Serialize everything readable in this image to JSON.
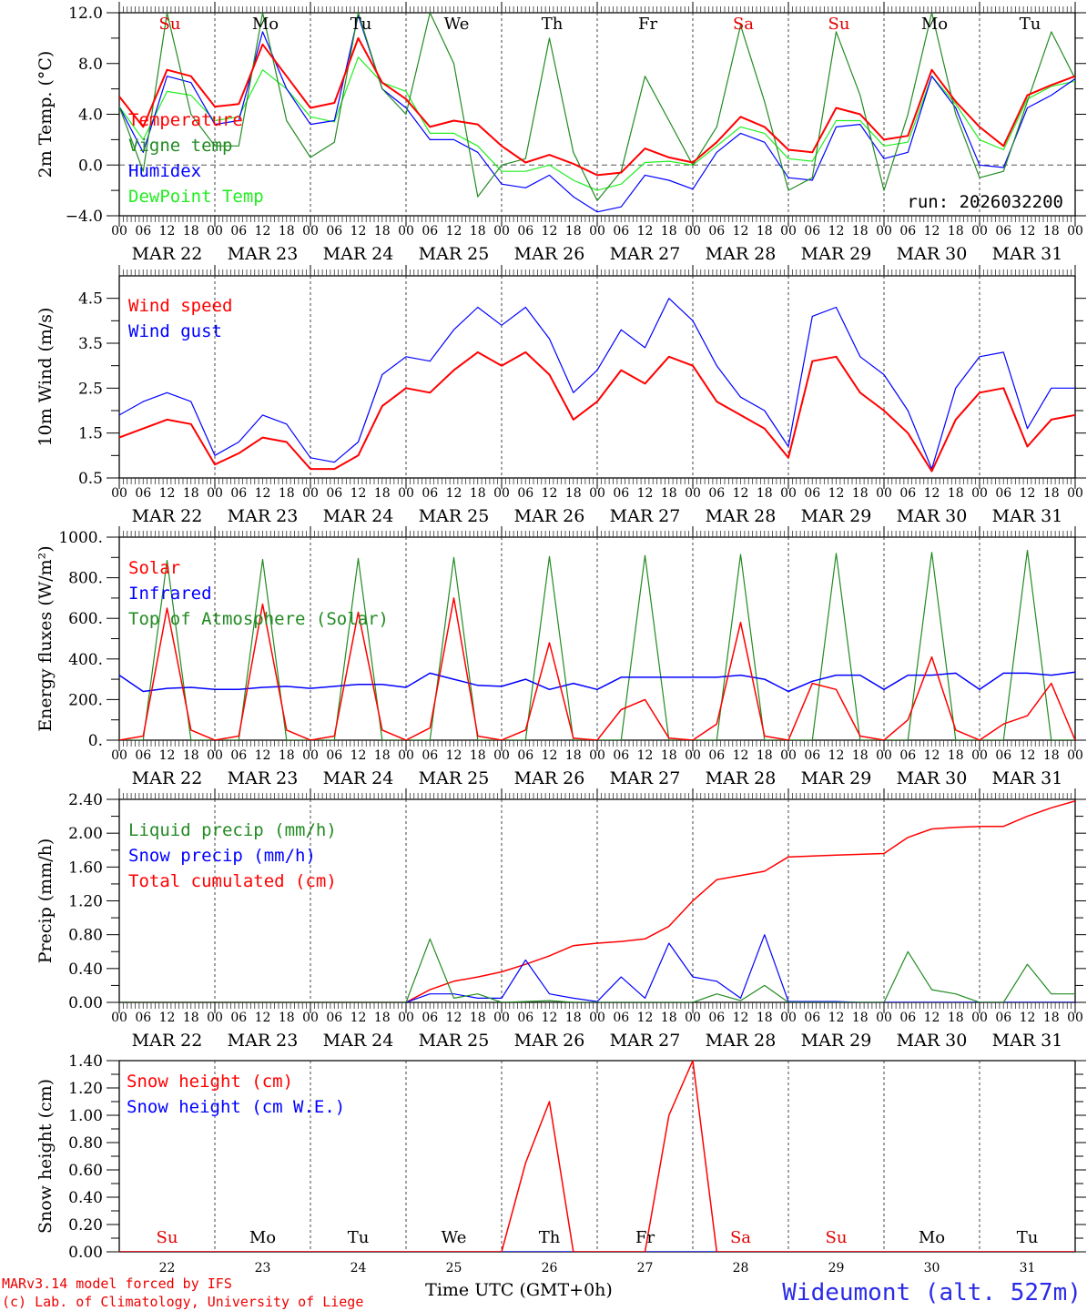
{
  "footer": {
    "model": "MARv3.14 model forced by IFS",
    "copyright": "(c) Lab. of Climatology, University of Liege",
    "station": "Wideumont (alt. 527m)",
    "xtitle": "Time UTC (GMT+0h)"
  },
  "run_label": "run: 2026032200",
  "days": [
    "MAR 22",
    "MAR 23",
    "MAR 24",
    "MAR 25",
    "MAR 26",
    "MAR 27",
    "MAR 28",
    "MAR 29",
    "MAR 30",
    "MAR 31"
  ],
  "day_numbers": [
    "22",
    "23",
    "24",
    "25",
    "26",
    "27",
    "28",
    "29",
    "30",
    "31"
  ],
  "weekdays": [
    {
      "label": "Su",
      "color": "#e00000"
    },
    {
      "label": "Mo",
      "color": "#000000"
    },
    {
      "label": "Tu",
      "color": "#000000"
    },
    {
      "label": "We",
      "color": "#000000"
    },
    {
      "label": "Th",
      "color": "#000000"
    },
    {
      "label": "Fr",
      "color": "#000000"
    },
    {
      "label": "Sa",
      "color": "#e00000"
    },
    {
      "label": "Su",
      "color": "#e00000"
    },
    {
      "label": "Mo",
      "color": "#000000"
    },
    {
      "label": "Tu",
      "color": "#000000"
    }
  ],
  "hour_ticks": [
    "00",
    "06",
    "12",
    "18"
  ],
  "chart_data": [
    {
      "type": "line",
      "title": "2m Temperature",
      "ylabel": "2m Temp. (°C)",
      "ylim": [
        -4,
        12
      ],
      "yticks": [
        "−4.0",
        "0.0",
        "4.0",
        "8.0",
        "12.0"
      ],
      "ytick_values": [
        -4,
        0,
        4,
        8,
        12
      ],
      "x_step_hours": 6,
      "zero_line": true,
      "series": [
        {
          "name": "Temperature",
          "color": "#ff0000",
          "width": 2,
          "values": [
            5.4,
            3.0,
            7.5,
            7.0,
            4.6,
            4.8,
            9.5,
            7.0,
            4.5,
            4.9,
            10.0,
            6.5,
            5.2,
            3.0,
            3.5,
            3.2,
            1.5,
            0.2,
            0.8,
            0.1,
            -0.8,
            -0.6,
            1.3,
            0.6,
            0.2,
            1.8,
            3.8,
            3.0,
            1.2,
            1.0,
            4.5,
            4.0,
            2.0,
            2.3,
            7.5,
            5.0,
            3.0,
            1.5,
            5.5,
            6.3,
            7.0
          ]
        },
        {
          "name": "Vigne temp",
          "color": "#228b22",
          "width": 1.2,
          "values": [
            4.6,
            -0.5,
            12,
            4.0,
            1.5,
            1.5,
            12,
            3.5,
            0.6,
            1.8,
            12,
            6.0,
            4.0,
            12,
            8.0,
            -2.5,
            0.0,
            0.5,
            10.0,
            1.0,
            -2.8,
            -0.5,
            7.0,
            3.5,
            0.0,
            3.0,
            11.0,
            5.0,
            -2.0,
            -1.0,
            10.5,
            5.5,
            -2.0,
            4.0,
            12,
            4.0,
            -1.0,
            -0.5,
            5.0,
            10.5,
            6.8
          ]
        },
        {
          "name": "Humidex",
          "color": "#0000ff",
          "width": 1.2,
          "values": [
            4.6,
            1.0,
            7.0,
            6.5,
            3.2,
            3.5,
            10.5,
            6.0,
            3.2,
            3.5,
            11.8,
            6.0,
            4.5,
            2.0,
            2.0,
            1.0,
            -1.5,
            -1.8,
            -0.8,
            -2.5,
            -3.7,
            -3.3,
            -0.8,
            -1.2,
            -1.9,
            1.0,
            2.5,
            1.8,
            -1.0,
            -1.2,
            3.0,
            3.2,
            0.5,
            1.0,
            7.0,
            4.5,
            0.0,
            -0.2,
            4.5,
            5.5,
            6.8
          ]
        },
        {
          "name": "DewPoint Temp",
          "color": "#22ee22",
          "width": 1.2,
          "values": [
            4.6,
            2.0,
            5.8,
            5.5,
            3.5,
            3.8,
            7.5,
            6.0,
            3.8,
            3.4,
            8.5,
            6.5,
            5.8,
            2.5,
            2.5,
            1.5,
            -0.5,
            -0.5,
            0.0,
            -1.2,
            -2.0,
            -1.5,
            0.2,
            0.3,
            0.0,
            1.5,
            3.0,
            2.5,
            0.5,
            0.3,
            3.5,
            3.5,
            1.5,
            1.8,
            7.0,
            4.8,
            2.0,
            1.2,
            5.2,
            6.2,
            6.6
          ]
        }
      ]
    },
    {
      "type": "line",
      "title": "10m Wind",
      "ylabel": "10m Wind (m/s)",
      "ylim": [
        0.5,
        5.0
      ],
      "yticks": [
        "0.5",
        "1.5",
        "2.5",
        "3.5",
        "4.5"
      ],
      "ytick_values": [
        0.5,
        1.5,
        2.5,
        3.5,
        4.5
      ],
      "x_step_hours": 6,
      "series": [
        {
          "name": "Wind speed",
          "color": "#ff0000",
          "width": 2,
          "values": [
            1.4,
            1.6,
            1.8,
            1.7,
            0.8,
            1.05,
            1.4,
            1.3,
            0.7,
            0.7,
            1.0,
            2.1,
            2.5,
            2.4,
            2.9,
            3.3,
            3.0,
            3.3,
            2.8,
            1.8,
            2.2,
            2.9,
            2.6,
            3.2,
            3.0,
            2.2,
            1.9,
            1.6,
            0.95,
            3.1,
            3.2,
            2.4,
            2.0,
            1.5,
            0.65,
            1.8,
            2.4,
            2.5,
            1.2,
            1.8,
            1.9
          ]
        },
        {
          "name": "Wind gust",
          "color": "#0000ff",
          "width": 1.2,
          "values": [
            1.9,
            2.2,
            2.4,
            2.2,
            1.0,
            1.3,
            1.9,
            1.7,
            0.95,
            0.85,
            1.3,
            2.8,
            3.2,
            3.1,
            3.8,
            4.3,
            3.9,
            4.3,
            3.6,
            2.4,
            2.9,
            3.8,
            3.4,
            4.5,
            4.0,
            3.0,
            2.3,
            2.0,
            1.2,
            4.1,
            4.3,
            3.2,
            2.8,
            2.0,
            0.7,
            2.5,
            3.2,
            3.3,
            1.6,
            2.5,
            2.5
          ]
        }
      ]
    },
    {
      "type": "line",
      "title": "Energy fluxes",
      "ylabel": "Energy fluxes (W/m²)",
      "ylim": [
        0,
        1000
      ],
      "yticks": [
        "0.",
        "200.",
        "400.",
        "600.",
        "800.",
        "1000."
      ],
      "ytick_values": [
        0,
        200,
        400,
        600,
        800,
        1000
      ],
      "x_step_hours": 6,
      "series": [
        {
          "name": "Solar",
          "color": "#ff0000",
          "width": 1.5,
          "values": [
            0,
            20,
            650,
            50,
            0,
            20,
            670,
            50,
            0,
            20,
            630,
            50,
            0,
            60,
            700,
            20,
            0,
            50,
            480,
            10,
            0,
            150,
            200,
            10,
            0,
            80,
            580,
            20,
            0,
            280,
            250,
            20,
            0,
            100,
            410,
            50,
            0,
            80,
            120,
            280,
            0
          ]
        },
        {
          "name": "Infrared",
          "color": "#0000ff",
          "width": 1.5,
          "values": [
            320,
            240,
            255,
            260,
            250,
            250,
            260,
            265,
            255,
            265,
            275,
            275,
            260,
            330,
            300,
            270,
            265,
            300,
            250,
            280,
            250,
            310,
            310,
            310,
            310,
            310,
            320,
            300,
            240,
            290,
            320,
            320,
            250,
            320,
            320,
            330,
            250,
            330,
            330,
            320,
            335
          ]
        },
        {
          "name": "Top of Atmosphere (Solar)",
          "color": "#228b22",
          "width": 1.2,
          "values": [
            0,
            0,
            885,
            0,
            0,
            0,
            890,
            0,
            0,
            0,
            895,
            0,
            0,
            0,
            900,
            0,
            0,
            0,
            905,
            0,
            0,
            0,
            910,
            0,
            0,
            0,
            915,
            0,
            0,
            0,
            920,
            0,
            0,
            0,
            925,
            0,
            0,
            0,
            935,
            0,
            0
          ]
        }
      ]
    },
    {
      "type": "line",
      "title": "Precip",
      "ylabel": "Precip (mm/h)",
      "ylim": [
        0,
        2.4
      ],
      "yticks": [
        "0.00",
        "0.40",
        "0.80",
        "1.20",
        "1.60",
        "2.00",
        "2.40"
      ],
      "ytick_values": [
        0,
        0.4,
        0.8,
        1.2,
        1.6,
        2.0,
        2.4
      ],
      "x_step_hours": 6,
      "series": [
        {
          "name": "Liquid precip (mm/h)",
          "color": "#228b22",
          "width": 1.2,
          "values": [
            0,
            0,
            0,
            0,
            0,
            0,
            0,
            0,
            0,
            0,
            0,
            0,
            0,
            0.75,
            0.05,
            0.1,
            0,
            0.01,
            0.02,
            0,
            0,
            0,
            0,
            0,
            0,
            0.1,
            0.02,
            0.2,
            0,
            0,
            0,
            0,
            0,
            0.6,
            0.15,
            0.1,
            0,
            0,
            0.45,
            0.1,
            0.1
          ]
        },
        {
          "name": "Snow precip (mm/h)",
          "color": "#0000ff",
          "width": 1.2,
          "values": [
            0,
            0,
            0,
            0,
            0,
            0,
            0,
            0,
            0,
            0,
            0,
            0,
            0,
            0.1,
            0.1,
            0.05,
            0.05,
            0.5,
            0.1,
            0.05,
            0.01,
            0.3,
            0.05,
            0.7,
            0.3,
            0.25,
            0.05,
            0.8,
            0.01,
            0.01,
            0.01,
            0,
            0,
            0,
            0,
            0,
            0,
            0,
            0,
            0,
            0
          ]
        },
        {
          "name": "Total cumulated (cm)",
          "color": "#ff0000",
          "width": 1.5,
          "values": [
            0,
            0,
            0,
            0,
            0,
            0,
            0,
            0,
            0,
            0,
            0,
            0,
            0,
            0.15,
            0.25,
            0.3,
            0.36,
            0.45,
            0.55,
            0.67,
            0.7,
            0.72,
            0.75,
            0.9,
            1.2,
            1.45,
            1.5,
            1.55,
            1.72,
            1.73,
            1.74,
            1.75,
            1.76,
            1.95,
            2.05,
            2.07,
            2.08,
            2.08,
            2.2,
            2.3,
            2.38
          ]
        }
      ]
    },
    {
      "type": "line",
      "title": "Snow height",
      "ylabel": "Snow height (cm)",
      "ylim": [
        0,
        1.4
      ],
      "yticks": [
        "0.00",
        "0.20",
        "0.40",
        "0.60",
        "0.80",
        "1.00",
        "1.20",
        "1.40"
      ],
      "ytick_values": [
        0,
        0.2,
        0.4,
        0.6,
        0.8,
        1.0,
        1.2,
        1.4
      ],
      "x_step_hours": 6,
      "series": [
        {
          "name": "Snow height (cm)",
          "color": "#ff0000",
          "width": 1.5,
          "values": [
            0,
            0,
            0,
            0,
            0,
            0,
            0,
            0,
            0,
            0,
            0,
            0,
            0,
            0,
            0,
            0,
            0,
            0.65,
            1.1,
            0,
            0,
            0,
            0,
            1.0,
            1.4,
            0,
            0,
            0,
            0,
            0,
            0,
            0,
            0,
            0,
            0,
            0,
            0,
            0,
            0,
            0,
            0
          ]
        },
        {
          "name": "Snow height (cm W.E.)",
          "color": "#0000ff",
          "width": 1.2,
          "values": [
            0,
            0,
            0,
            0,
            0,
            0,
            0,
            0,
            0,
            0,
            0,
            0,
            0,
            0,
            0,
            0,
            0,
            0,
            0,
            0,
            0,
            0,
            0,
            0,
            0,
            0,
            0,
            0,
            0,
            0,
            0,
            0,
            0,
            0,
            0,
            0,
            0,
            0,
            0,
            0,
            0
          ]
        }
      ]
    }
  ]
}
